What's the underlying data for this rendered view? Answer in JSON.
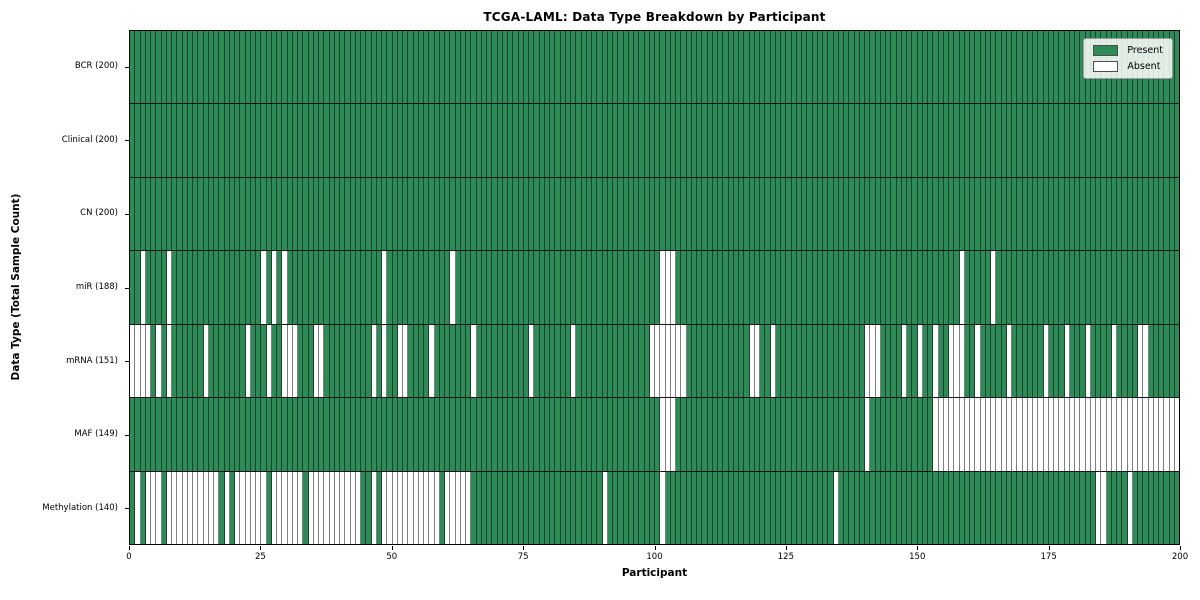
{
  "chart_data": {
    "type": "heatmap",
    "title": "TCGA-LAML: Data Type Breakdown by Participant",
    "xlabel": "Participant",
    "ylabel": "Data Type (Total Sample Count)",
    "x_ticks": [
      0,
      25,
      50,
      75,
      100,
      125,
      150,
      175,
      200
    ],
    "x_range": [
      0,
      200
    ],
    "n_participants": 200,
    "grid": "off",
    "legend_position": "upper right",
    "colors": {
      "present": "#2e8b57",
      "absent": "#ffffff",
      "cell_edge": "rgba(0,0,0,0.5)",
      "row_divider": "#141414",
      "frame": "#000000"
    },
    "legend": [
      {
        "label": "Present",
        "state": "present"
      },
      {
        "label": "Absent",
        "state": "absent"
      }
    ],
    "rows": [
      {
        "label": "BCR (200)",
        "data_type": "BCR",
        "present_total": 200,
        "absent_participants": []
      },
      {
        "label": "Clinical (200)",
        "data_type": "Clinical",
        "present_total": 200,
        "absent_participants": []
      },
      {
        "label": "CN (200)",
        "data_type": "CN",
        "present_total": 200,
        "absent_participants": []
      },
      {
        "label": "miR (188)",
        "data_type": "miR",
        "present_total": 188,
        "absent_participants": [
          2,
          7,
          25,
          27,
          29,
          48,
          61,
          101,
          102,
          103,
          158,
          164
        ]
      },
      {
        "label": "mRNA (151)",
        "data_type": "mRNA",
        "present_total": 151,
        "absent_participants": [
          0,
          1,
          2,
          3,
          5,
          7,
          14,
          22,
          26,
          29,
          30,
          31,
          35,
          36,
          46,
          48,
          51,
          52,
          57,
          65,
          76,
          84,
          99,
          100,
          101,
          102,
          103,
          104,
          105,
          118,
          119,
          122,
          140,
          141,
          142,
          147,
          150,
          153,
          156,
          157,
          158,
          161,
          167,
          174,
          178,
          182,
          187,
          192,
          193
        ]
      },
      {
        "label": "MAF (149)",
        "data_type": "MAF",
        "present_total": 149,
        "absent_participants": [
          101,
          102,
          103,
          140,
          153,
          154,
          155,
          156,
          157,
          158,
          159,
          160,
          161,
          162,
          163,
          164,
          165,
          166,
          167,
          168,
          169,
          170,
          171,
          172,
          173,
          174,
          175,
          176,
          177,
          178,
          179,
          180,
          181,
          182,
          183,
          184,
          185,
          186,
          187,
          188,
          189,
          190,
          191,
          192,
          193,
          194,
          195,
          196,
          197,
          198,
          199
        ]
      },
      {
        "label": "Methylation (140)",
        "data_type": "Methylation",
        "present_total": 140,
        "absent_participants": [
          1,
          3,
          4,
          5,
          7,
          8,
          9,
          10,
          11,
          12,
          13,
          14,
          15,
          16,
          18,
          20,
          21,
          22,
          23,
          24,
          25,
          27,
          28,
          29,
          30,
          31,
          32,
          34,
          35,
          36,
          37,
          38,
          39,
          40,
          41,
          42,
          43,
          46,
          48,
          49,
          50,
          51,
          52,
          53,
          54,
          55,
          56,
          57,
          58,
          60,
          61,
          62,
          63,
          64,
          90,
          101,
          134,
          184,
          185,
          190
        ]
      }
    ]
  },
  "geometry_note": "plot area 129,30 to 1180,545"
}
